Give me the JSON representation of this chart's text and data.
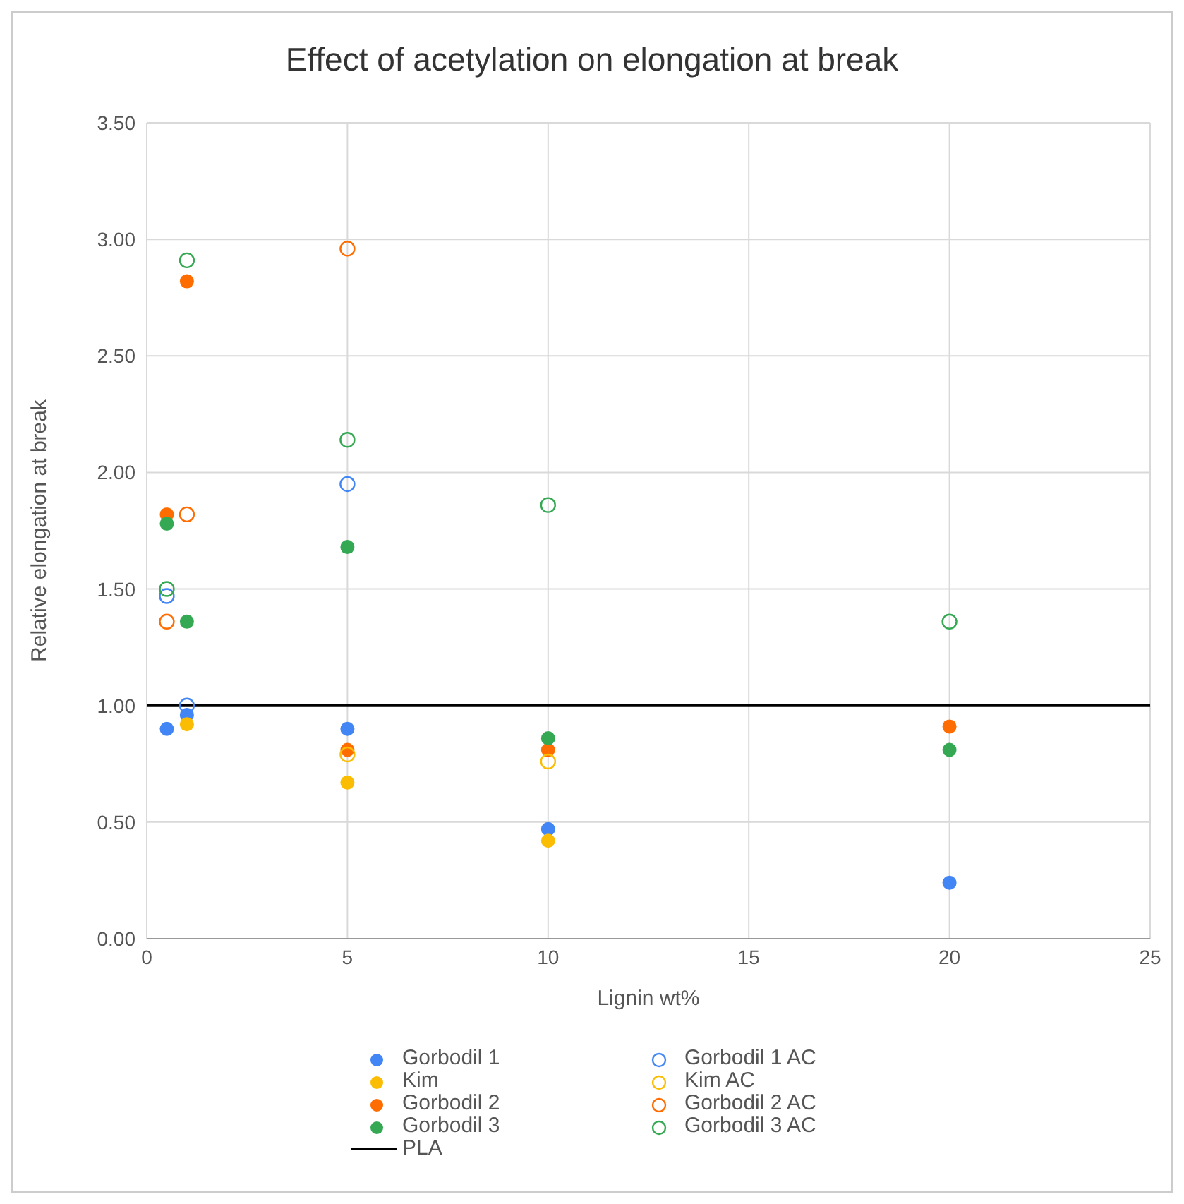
{
  "chart_data": {
    "type": "scatter",
    "title": "Effect of acetylation on elongation at break",
    "xlabel": "Lignin wt%",
    "ylabel": "Relative elongation at break",
    "xlim": [
      0,
      25
    ],
    "xticks": [
      0,
      5,
      10,
      15,
      20,
      25
    ],
    "ylim": [
      0,
      3.5
    ],
    "yticks": [
      {
        "value": 0,
        "label": "0.00"
      },
      {
        "value": 0.5,
        "label": "0.50"
      },
      {
        "value": 1,
        "label": "1.00"
      },
      {
        "value": 1.5,
        "label": "1.50"
      },
      {
        "value": 2,
        "label": "2.00"
      },
      {
        "value": 2.5,
        "label": "2.50"
      },
      {
        "value": 3,
        "label": "3.00"
      },
      {
        "value": 3.5,
        "label": "3.50"
      }
    ],
    "grid": true,
    "legend": "bottom",
    "marker": "circle",
    "series": [
      {
        "name": "Gorbodil 1",
        "color": "#4285f4",
        "x": [
          0.5,
          1,
          5,
          10,
          20
        ],
        "values": [
          0.9,
          0.96,
          0.9,
          0.47,
          0.24
        ]
      },
      {
        "name": "Kim",
        "color": "#fbbc04",
        "x": [
          1,
          5,
          10
        ],
        "values": [
          0.92,
          0.67,
          0.42
        ]
      },
      {
        "name": "Gorbodil 2",
        "color": "#ff6d01",
        "x": [
          0.5,
          1,
          5,
          10,
          20
        ],
        "values": [
          1.82,
          2.82,
          0.81,
          0.81,
          0.91
        ]
      },
      {
        "name": "Gorbodil 3",
        "color": "#34a853",
        "x": [
          0.5,
          1,
          5,
          10,
          20
        ],
        "values": [
          1.78,
          1.36,
          1.68,
          0.86,
          0.81
        ]
      },
      {
        "name": "Gorbodil 1 AC",
        "color": "#4285f4",
        "marker": "open circle",
        "x": [
          0.5,
          1,
          5
        ],
        "values": [
          1.47,
          1.0,
          1.95
        ]
      },
      {
        "name": "Kim AC",
        "color": "#fbbc04",
        "marker": "open circle",
        "x": [
          5,
          10
        ],
        "values": [
          0.79,
          0.76
        ]
      },
      {
        "name": "Gorbodil 2 AC",
        "color": "#ff6d01",
        "marker": "open circle",
        "x": [
          0.5,
          1,
          5
        ],
        "values": [
          1.36,
          1.82,
          2.96
        ]
      },
      {
        "name": "Gorbodil 3 AC",
        "color": "#34a853",
        "marker": "open circle",
        "x": [
          0.5,
          1,
          5,
          10,
          20
        ],
        "values": [
          1.5,
          2.91,
          2.14,
          1.86,
          1.36
        ]
      },
      {
        "name": "PLA",
        "type": "line",
        "color": "#000000",
        "marker": "none",
        "x": [
          0,
          25
        ],
        "values": [
          1,
          1
        ]
      }
    ]
  }
}
